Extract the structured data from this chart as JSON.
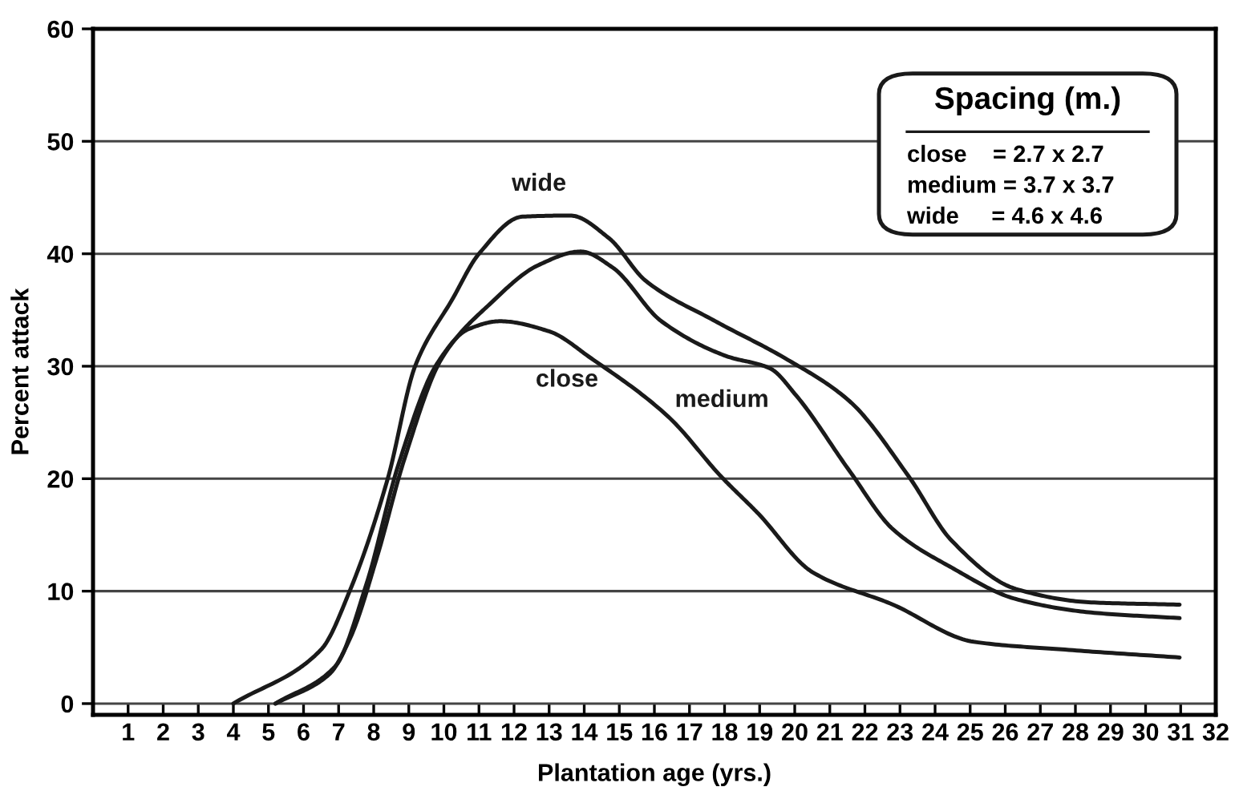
{
  "chart_data": {
    "type": "line",
    "xlabel": "Plantation age (yrs.)",
    "ylabel": "Percent attack",
    "xlim": [
      0,
      32
    ],
    "ylim": [
      -1,
      60
    ],
    "xticks": [
      1,
      2,
      3,
      4,
      5,
      6,
      7,
      8,
      9,
      10,
      11,
      12,
      13,
      14,
      15,
      16,
      17,
      18,
      19,
      20,
      21,
      22,
      23,
      24,
      25,
      26,
      27,
      28,
      29,
      30,
      31,
      32
    ],
    "yticks": [
      0,
      10,
      20,
      30,
      40,
      50,
      60
    ],
    "grid": "y",
    "marker": "none",
    "line_style": "solid",
    "series": [
      {
        "name": "wide",
        "color": "#1a1a1a",
        "x": [
          4.0,
          6.5,
          7.34,
          8.4,
          9.18,
          10.25,
          11.0,
          12.24,
          13.6,
          14.7,
          15.75,
          17.74,
          19.73,
          21.56,
          23.25,
          24.47,
          26.3,
          28.45,
          30.97
        ],
        "values": [
          0,
          4.8,
          10.2,
          20,
          30,
          36,
          40,
          43.3,
          43.4,
          41.4,
          37.6,
          34.0,
          30.7,
          26.9,
          20.2,
          14.5,
          10.2,
          9.0,
          8.8
        ]
      },
      {
        "name": "medium",
        "color": "#1a1a1a",
        "x": [
          5.2,
          6.73,
          7.34,
          8.1,
          8.87,
          9.94,
          11.3,
          12.7,
          13.9,
          14.8,
          16.2,
          18.05,
          19.3,
          20.04,
          21.56,
          22.8,
          24.47,
          26.3,
          28.45,
          30.97
        ],
        "values": [
          0,
          2.6,
          5.9,
          13.1,
          21.7,
          30.7,
          35.5,
          39,
          40.2,
          38.8,
          34.0,
          30.9,
          29.8,
          27.4,
          20.7,
          15.5,
          12.1,
          9.3,
          8.1,
          7.6
        ]
      },
      {
        "name": "close",
        "color": "#1a1a1a",
        "x": [
          5.2,
          6.9,
          7.8,
          8.7,
          9.8,
          10.7,
          11.6,
          13.0,
          14.2,
          16.4,
          17.9,
          18.96,
          20.5,
          22.8,
          25.1,
          27.7,
          30.97
        ],
        "values": [
          0,
          3.3,
          10.7,
          21.2,
          30.2,
          33.3,
          34.0,
          33.1,
          30.7,
          25.5,
          20.2,
          16.9,
          11.7,
          8.8,
          5.5,
          4.8,
          4.1
        ]
      }
    ],
    "annotations": [
      "Spacing (m.)",
      "close    = 2.7 x 2.7",
      "medium = 3.7 x 3.7",
      "wide     = 4.6 x 4.6"
    ]
  }
}
